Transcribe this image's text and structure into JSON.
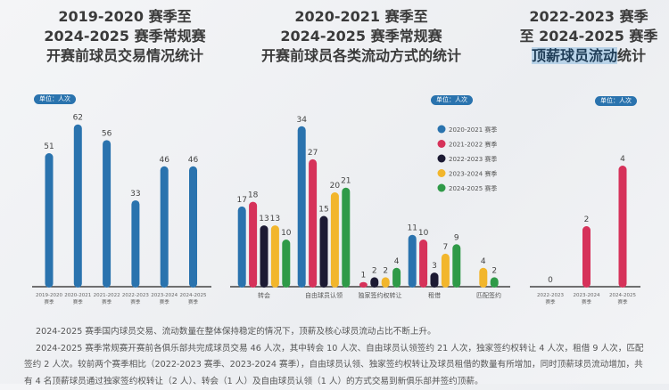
{
  "charts_titles": [
    [
      "2019-2020 赛季至",
      "2024-2025 赛季常规赛",
      "开赛前球员交易情况统计"
    ],
    [
      "2020-2021 赛季至",
      "2024-2025 赛季常规赛",
      "开赛前球员各类流动方式的统计"
    ],
    [
      "2022-2023 赛季",
      "至 2024-2025 赛季",
      "顶薪球员流动",
      "统计"
    ]
  ],
  "unit_label": "单位：人次",
  "chart_data": [
    {
      "type": "bar",
      "title": "2019-2020 赛季至 2024-2025 赛季常规赛开赛前球员交易情况统计",
      "categories": [
        "2019-2020 赛季",
        "2020-2021 赛季",
        "2021-2022 赛季",
        "2022-2023 赛季",
        "2023-2024 赛季",
        "2024-2025 赛季"
      ],
      "values": [
        51,
        62,
        56,
        33,
        46,
        46
      ],
      "color": "#2a73ae",
      "unit": "单位：人次"
    },
    {
      "type": "bar",
      "title": "2020-2021 赛季至 2024-2025 赛季常规赛开赛前球员各类流动方式的统计",
      "categories": [
        "转会",
        "自由球员认领",
        "独家签约权转让",
        "租借",
        "匹配签约"
      ],
      "series": [
        {
          "name": "2020-2021 赛季",
          "color": "#2a73ae",
          "values": [
            17,
            34,
            null,
            11,
            null
          ]
        },
        {
          "name": "2021-2022 赛季",
          "color": "#d6325a",
          "values": [
            18,
            27,
            1,
            10,
            null
          ]
        },
        {
          "name": "2022-2023 赛季",
          "color": "#1c1a33",
          "values": [
            13,
            15,
            2,
            3,
            null
          ]
        },
        {
          "name": "2023-2024 赛季",
          "color": "#f2b62c",
          "values": [
            13,
            20,
            2,
            7,
            4
          ]
        },
        {
          "name": "2024-2025 赛季",
          "color": "#2f9a48",
          "values": [
            10,
            21,
            4,
            9,
            2
          ]
        }
      ],
      "legend": "top-right",
      "unit": "单位：人次"
    },
    {
      "type": "bar",
      "title": "2022-2023 赛季至 2024-2025 赛季顶薪球员流动统计",
      "categories": [
        "2022-2023 赛季",
        "2023-2024 赛季",
        "2024-2025 赛季"
      ],
      "values": [
        0,
        2,
        4
      ],
      "color": "#d6325a",
      "unit": "单位：人次"
    }
  ],
  "description": [
    "2024-2025 赛季国内球员交易、流动数量在整体保持稳定的情况下，顶薪及核心球员流动占比不断上升。",
    "2024-2025 赛季常规赛开赛前各俱乐部共完成球员交易 46 人次，其中转会 10 人次、自由球员认领签约 21 人次，独家签约权转让 4 人次，租借 9 人次，匹配签约 2 人次。较前两个赛季相比（2022-2023 赛季、2023-2024 赛季），自由球员认领、独家签约权转让及球员租借的数量有所增加，同时顶薪球员流动增加，共有 4 名顶薪球员通过独家签约权转让（2 人）、转会（1 人）及自由球员认领（1 人）的方式交易到新俱乐部并签约顶薪。"
  ]
}
